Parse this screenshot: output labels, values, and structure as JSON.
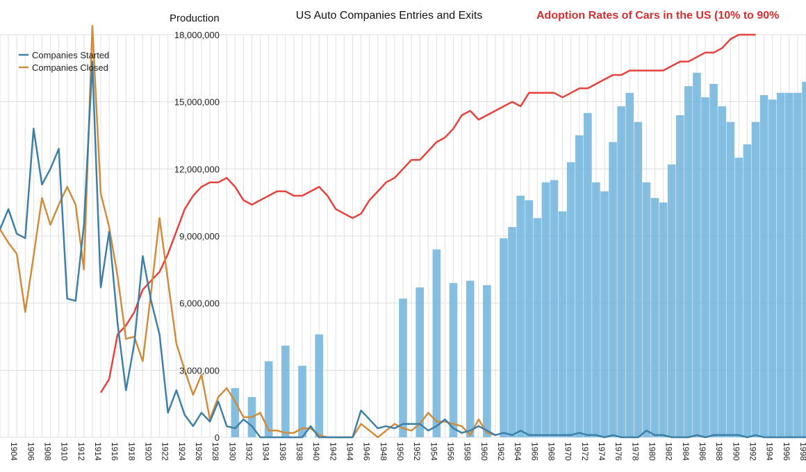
{
  "chart_data": {
    "type": "bar",
    "title": "US Auto Companies Entries and Exits",
    "title_right": "Adoption Rates of Cars in the US (10% to 90%",
    "ylabel": "Production",
    "ylim": [
      0,
      18000000
    ],
    "yticks": [
      "0",
      "3,000,000",
      "6,000,000",
      "9,000,000",
      "12,000,000",
      "15,000,000",
      "18,000,000"
    ],
    "ytick_values": [
      0,
      3000000,
      6000000,
      9000000,
      12000000,
      15000000,
      18000000
    ],
    "xlim": [
      1903,
      1999
    ],
    "x_tick_labels": [
      "1904",
      "1906",
      "1908",
      "1910",
      "1912",
      "1914",
      "1916",
      "1918",
      "1920",
      "1922",
      "1924",
      "1926",
      "1928",
      "1930",
      "1932",
      "1934",
      "1936",
      "1938",
      "1940",
      "1942",
      "1944",
      "1946",
      "1948",
      "1950",
      "1952",
      "1954",
      "1956",
      "1958",
      "1960",
      "1962",
      "1964",
      "1966",
      "1968",
      "1970",
      "1972",
      "1974",
      "1976",
      "1978",
      "1980",
      "1982",
      "1984",
      "1986",
      "1988",
      "1990",
      "1992",
      "1994",
      "1996",
      "1998"
    ],
    "x_tick_values": [
      1904,
      1906,
      1908,
      1910,
      1912,
      1914,
      1916,
      1918,
      1920,
      1922,
      1924,
      1926,
      1928,
      1930,
      1932,
      1934,
      1936,
      1938,
      1940,
      1942,
      1944,
      1946,
      1948,
      1950,
      1952,
      1954,
      1956,
      1958,
      1960,
      1962,
      1964,
      1966,
      1968,
      1970,
      1972,
      1974,
      1976,
      1978,
      1980,
      1982,
      1984,
      1986,
      1988,
      1990,
      1992,
      1994,
      1996,
      1998
    ],
    "grid": true,
    "legend": {
      "placement": "top-left",
      "entries": [
        "Companies Started",
        "Companies Closed"
      ]
    },
    "colors": {
      "started": "#3d7fa6",
      "closed": "#d08c3a",
      "adoption": "#e8403a",
      "bars": "#6fb3dc",
      "grid": "#dddddd"
    },
    "production": {
      "years": [
        1930,
        1931,
        1932,
        1933,
        1934,
        1935,
        1936,
        1937,
        1938,
        1939,
        1940,
        1941,
        1942,
        1943,
        1944,
        1945,
        1946,
        1947,
        1948,
        1949,
        1950,
        1951,
        1952,
        1953,
        1954,
        1955,
        1956,
        1957,
        1958,
        1959,
        1960,
        1961,
        1962,
        1963,
        1964,
        1965,
        1966,
        1967,
        1968,
        1969,
        1970,
        1971,
        1972,
        1973,
        1974,
        1975,
        1976,
        1977,
        1978,
        1979,
        1980,
        1981,
        1982,
        1983,
        1984,
        1985,
        1986,
        1987,
        1988,
        1989,
        1990,
        1991,
        1992,
        1993,
        1994,
        1995,
        1996,
        1997,
        1998,
        1999
      ],
      "values": [
        0,
        2200000,
        0,
        1800000,
        0,
        3400000,
        0,
        4100000,
        0,
        3200000,
        0,
        4600000,
        0,
        0,
        0,
        0,
        0,
        0,
        0,
        0,
        0,
        6200000,
        0,
        6700000,
        0,
        8400000,
        0,
        6900000,
        0,
        7000000,
        0,
        6800000,
        0,
        8900000,
        9400000,
        10800000,
        10600000,
        9800000,
        11400000,
        11500000,
        10100000,
        12300000,
        13500000,
        14500000,
        11400000,
        11000000,
        13200000,
        14800000,
        15400000,
        14100000,
        11400000,
        10700000,
        10500000,
        12200000,
        14400000,
        15700000,
        16300000,
        15200000,
        15800000,
        14800000,
        14100000,
        12500000,
        13100000,
        14100000,
        15300000,
        15100000,
        15400000,
        15400000,
        15400000,
        15900000
      ]
    },
    "adoption_percent": {
      "years": [
        1915,
        1916,
        1917,
        1918,
        1919,
        1920,
        1921,
        1922,
        1923,
        1924,
        1925,
        1926,
        1927,
        1928,
        1929,
        1930,
        1931,
        1932,
        1933,
        1934,
        1935,
        1936,
        1937,
        1938,
        1939,
        1940,
        1941,
        1942,
        1943,
        1944,
        1945,
        1946,
        1947,
        1948,
        1949,
        1950,
        1951,
        1952,
        1953,
        1954,
        1955,
        1956,
        1957,
        1958,
        1959,
        1960,
        1961,
        1962,
        1963,
        1964,
        1965,
        1966,
        1967,
        1968,
        1969,
        1970,
        1971,
        1972,
        1973,
        1974,
        1975,
        1976,
        1977,
        1978,
        1979,
        1980,
        1981,
        1982,
        1983,
        1984,
        1985,
        1986,
        1987,
        1988,
        1989,
        1990,
        1991,
        1992,
        1993
      ],
      "values": [
        10,
        13,
        23,
        25,
        28,
        33,
        35,
        37,
        41,
        46,
        51,
        54,
        56,
        57,
        57,
        58,
        56,
        53,
        52,
        53,
        54,
        55,
        55,
        54,
        54,
        55,
        56,
        54,
        51,
        50,
        49,
        50,
        53,
        55,
        57,
        58,
        60,
        62,
        62,
        64,
        66,
        67,
        69,
        72,
        73,
        71,
        72,
        73,
        74,
        75,
        74,
        77,
        77,
        77,
        77,
        76,
        77,
        78,
        78,
        79,
        80,
        81,
        81,
        82,
        82,
        82,
        82,
        82,
        83,
        84,
        84,
        85,
        86,
        86,
        87,
        89,
        90,
        90,
        90
      ]
    },
    "series": [
      {
        "name": "Companies Started",
        "x": [
          1903,
          1904,
          1905,
          1906,
          1907,
          1908,
          1909,
          1910,
          1911,
          1912,
          1913,
          1914,
          1915,
          1916,
          1917,
          1918,
          1919,
          1920,
          1921,
          1922,
          1923,
          1924,
          1925,
          1926,
          1927,
          1928,
          1929,
          1930,
          1931,
          1932,
          1933,
          1934,
          1935,
          1936,
          1937,
          1938,
          1939,
          1940,
          1941,
          1942,
          1943,
          1944,
          1945,
          1946,
          1947,
          1948,
          1949,
          1950,
          1951,
          1952,
          1953,
          1954,
          1955,
          1956,
          1957,
          1958,
          1959,
          1960,
          1961,
          1962,
          1963,
          1964,
          1965,
          1966,
          1967,
          1968,
          1969,
          1970,
          1971,
          1972,
          1973,
          1974,
          1975,
          1976,
          1977,
          1978,
          1979,
          1980,
          1981,
          1982,
          1983,
          1984,
          1985,
          1986,
          1987,
          1988,
          1989,
          1990,
          1991,
          1992,
          1993,
          1994,
          1995,
          1996,
          1997,
          1998,
          1999
        ],
        "values": [
          9300000,
          10200000,
          9100000,
          8900000,
          13800000,
          11300000,
          12000000,
          12900000,
          6200000,
          6100000,
          9500000,
          16800000,
          6700000,
          9200000,
          5100000,
          2100000,
          4200000,
          8100000,
          6100000,
          4600000,
          1100000,
          2100000,
          1000000,
          500000,
          1100000,
          700000,
          1600000,
          500000,
          400000,
          800000,
          500000,
          0,
          0,
          0,
          0,
          0,
          0,
          500000,
          0,
          0,
          0,
          0,
          0,
          1200000,
          800000,
          400000,
          500000,
          400000,
          600000,
          600000,
          600000,
          300000,
          500000,
          800000,
          400000,
          200000,
          300000,
          500000,
          300000,
          100000,
          200000,
          100000,
          300000,
          100000,
          100000,
          100000,
          100000,
          100000,
          100000,
          200000,
          100000,
          100000,
          0,
          100000,
          0,
          0,
          0,
          300000,
          100000,
          100000,
          0,
          0,
          0,
          100000,
          0,
          100000,
          100000,
          100000,
          100000,
          0,
          100000,
          0,
          0,
          0,
          0,
          0,
          0
        ]
      },
      {
        "name": "Companies Closed",
        "x": [
          1903,
          1904,
          1905,
          1906,
          1907,
          1908,
          1909,
          1910,
          1911,
          1912,
          1913,
          1914,
          1915,
          1916,
          1917,
          1918,
          1919,
          1920,
          1921,
          1922,
          1923,
          1924,
          1925,
          1926,
          1927,
          1928,
          1929,
          1930,
          1931,
          1932,
          1933,
          1934,
          1935,
          1936,
          1937,
          1938,
          1939,
          1940,
          1941,
          1942,
          1943,
          1944,
          1945,
          1946,
          1947,
          1948,
          1949,
          1950,
          1951,
          1952,
          1953,
          1954,
          1955,
          1956,
          1957,
          1958,
          1959,
          1960,
          1961,
          1962
        ],
        "values": [
          9300000,
          8700000,
          8200000,
          5600000,
          8100000,
          10700000,
          9500000,
          10400000,
          11200000,
          10400000,
          7500000,
          18400000,
          10900000,
          9400000,
          7200000,
          4400000,
          4500000,
          3400000,
          6500000,
          9800000,
          7000000,
          4200000,
          3000000,
          1900000,
          2800000,
          800000,
          1800000,
          2200000,
          1600000,
          900000,
          900000,
          1100000,
          300000,
          300000,
          200000,
          200000,
          400000,
          400000,
          100000,
          0,
          0,
          0,
          0,
          600000,
          300000,
          0,
          300000,
          600000,
          400000,
          300000,
          600000,
          1100000,
          700000,
          700000,
          600000,
          500000,
          100000,
          800000,
          200000,
          100000
        ]
      }
    ]
  }
}
